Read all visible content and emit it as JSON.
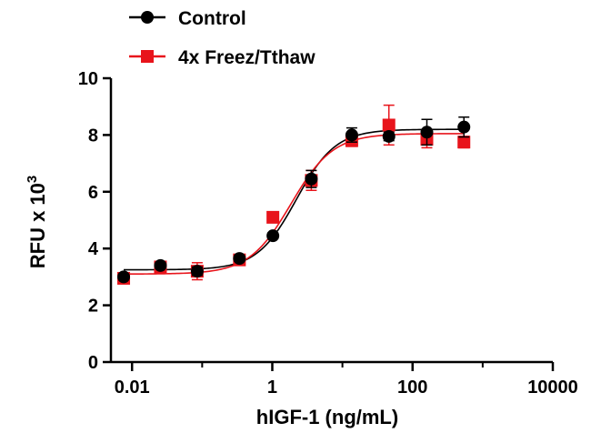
{
  "chart_data": {
    "type": "scatter",
    "title": "",
    "xlabel": "hIGF-1 (ng/mL)",
    "ylabel": "RFU x 10",
    "ylabel_superscript": "3",
    "x_scale": "log",
    "xlim": [
      0.005,
      10000
    ],
    "ylim": [
      0,
      10
    ],
    "x_ticks": [
      0.01,
      1,
      100,
      10000
    ],
    "x_tick_labels": [
      "0.01",
      "1",
      "100",
      "10000"
    ],
    "y_ticks": [
      0,
      2,
      4,
      6,
      8,
      10
    ],
    "y_tick_labels": [
      "0",
      "2",
      "4",
      "6",
      "8",
      "10"
    ],
    "legend_position": "top-left",
    "grid": false,
    "series": [
      {
        "name": "Control",
        "color": "#000000",
        "marker": "circle",
        "points": [
          {
            "x": 0.0076,
            "y": 3.0,
            "err": 0.1
          },
          {
            "x": 0.0254,
            "y": 3.4,
            "err": 0.1
          },
          {
            "x": 0.085,
            "y": 3.2,
            "err": 0.15
          },
          {
            "x": 0.34,
            "y": 3.65,
            "err": 0.1
          },
          {
            "x": 1.02,
            "y": 4.45,
            "err": 0.1
          },
          {
            "x": 3.6,
            "y": 6.45,
            "err": 0.3
          },
          {
            "x": 13.6,
            "y": 8.0,
            "err": 0.25
          },
          {
            "x": 46,
            "y": 7.95,
            "err": 0.15
          },
          {
            "x": 160,
            "y": 8.1,
            "err": 0.45
          },
          {
            "x": 540,
            "y": 8.28,
            "err": 0.35
          }
        ],
        "fit": {
          "bottom": 3.25,
          "top": 8.2,
          "ec50": 2.2,
          "hill": 1.55
        }
      },
      {
        "name": "4x Freez/Tthaw",
        "color": "#e8141b",
        "marker": "square",
        "points": [
          {
            "x": 0.0076,
            "y": 2.95,
            "err": 0.1
          },
          {
            "x": 0.0254,
            "y": 3.35,
            "err": 0.1
          },
          {
            "x": 0.085,
            "y": 3.2,
            "err": 0.3
          },
          {
            "x": 0.34,
            "y": 3.6,
            "err": 0.15
          },
          {
            "x": 1.02,
            "y": 5.1,
            "err": 0.1
          },
          {
            "x": 3.6,
            "y": 6.4,
            "err": 0.35
          },
          {
            "x": 13.6,
            "y": 7.8,
            "err": 0.2
          },
          {
            "x": 46,
            "y": 8.35,
            "err": 0.7
          },
          {
            "x": 160,
            "y": 7.85,
            "err": 0.3
          },
          {
            "x": 540,
            "y": 7.75,
            "err": 0.2
          }
        ],
        "fit": {
          "bottom": 3.1,
          "top": 8.05,
          "ec50": 1.85,
          "hill": 1.45
        }
      }
    ]
  }
}
